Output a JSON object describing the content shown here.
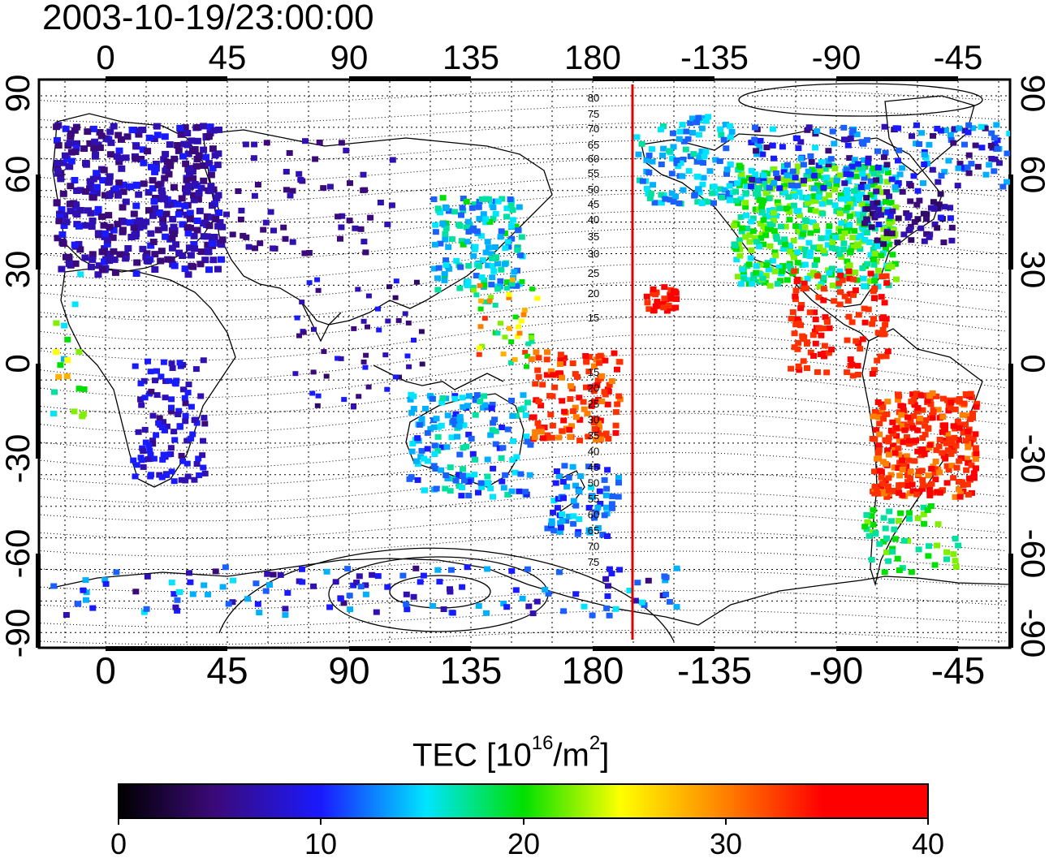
{
  "header": {
    "timestamp": "2003-10-19/23:00:00"
  },
  "map": {
    "top_lon_ticks": [
      "0",
      "45",
      "90",
      "135",
      "180",
      "-135",
      "-90",
      "-45"
    ],
    "bottom_lon_ticks": [
      "0",
      "45",
      "90",
      "135",
      "180",
      "-135",
      "-90",
      "-45"
    ],
    "left_lat_ticks": [
      "90",
      "60",
      "30",
      "0",
      "-30",
      "-60",
      "-90"
    ],
    "right_lat_ticks": [
      "90",
      "60",
      "30",
      "0",
      "-30",
      "-60",
      "-90"
    ],
    "contour_labels_north": [
      "80",
      "75",
      "70",
      "65",
      "60",
      "55",
      "50",
      "45",
      "40",
      "35",
      "30",
      "25",
      "20",
      "15"
    ],
    "contour_labels_south": [
      "15",
      "20",
      "25",
      "30",
      "35",
      "40",
      "45",
      "50",
      "55",
      "60",
      "65",
      "70",
      "75"
    ],
    "meridian_marker_color": "#e00000"
  },
  "colorbar": {
    "title_main": "TEC  [10",
    "title_exp1": "16",
    "title_mid": "/m",
    "title_exp2": "2",
    "title_end": "]",
    "tick_labels": [
      "0",
      "10",
      "20",
      "30",
      "40"
    ],
    "range": [
      0,
      40
    ],
    "colormap": [
      "#000000",
      "#3b0a7a",
      "#1a1aff",
      "#00e5ff",
      "#00e000",
      "#ffff00",
      "#ff8000",
      "#ff0000"
    ]
  }
}
